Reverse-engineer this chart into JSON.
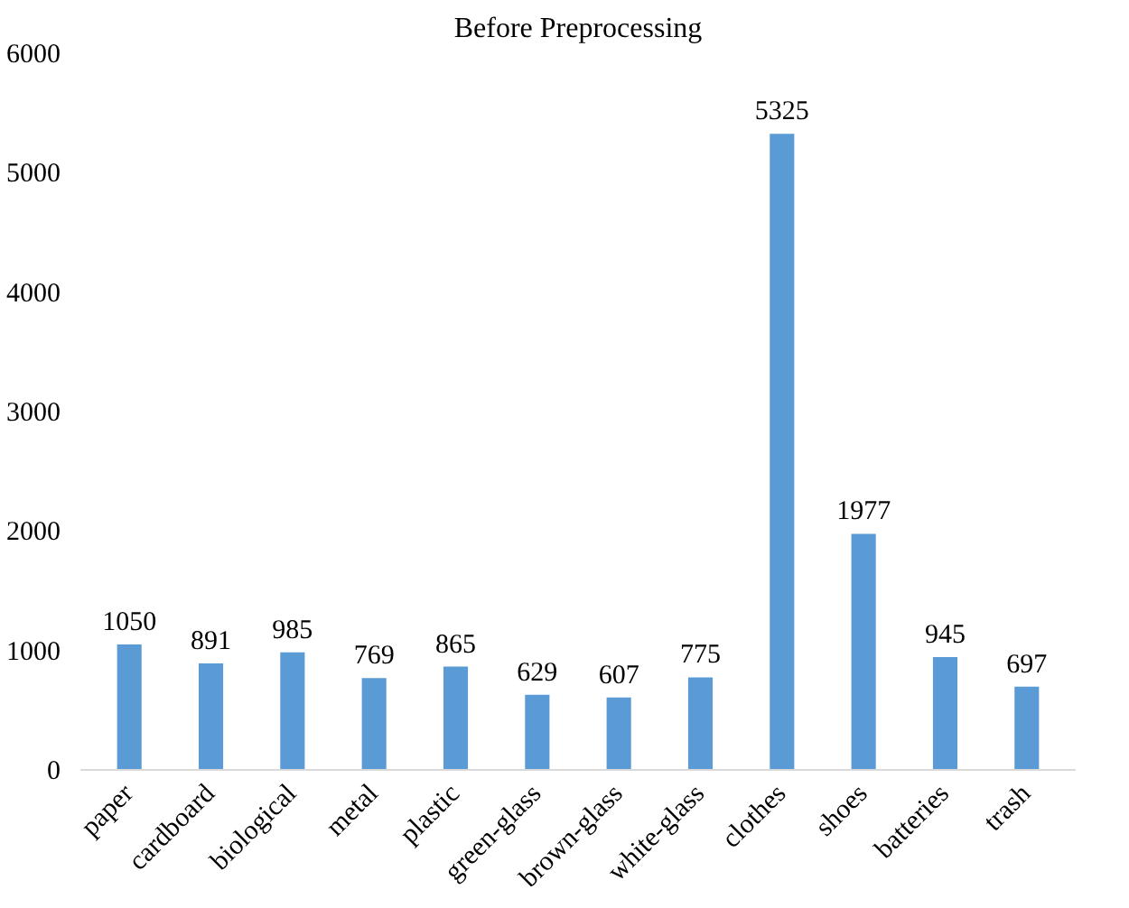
{
  "chart_data": {
    "type": "bar",
    "title": "Before Preprocessing",
    "categories": [
      "paper",
      "cardboard",
      "biological",
      "metal",
      "plastic",
      "green-glass",
      "brown-glass",
      "white-glass",
      "clothes",
      "shoes",
      "batteries",
      "trash"
    ],
    "values": [
      1050,
      891,
      985,
      769,
      865,
      629,
      607,
      775,
      5325,
      1977,
      945,
      697
    ],
    "color": "#5b9bd5",
    "ylim": [
      0,
      6000
    ],
    "yticks": [
      0,
      1000,
      2000,
      3000,
      4000,
      5000,
      6000
    ],
    "grid": false,
    "data_labels": true
  }
}
